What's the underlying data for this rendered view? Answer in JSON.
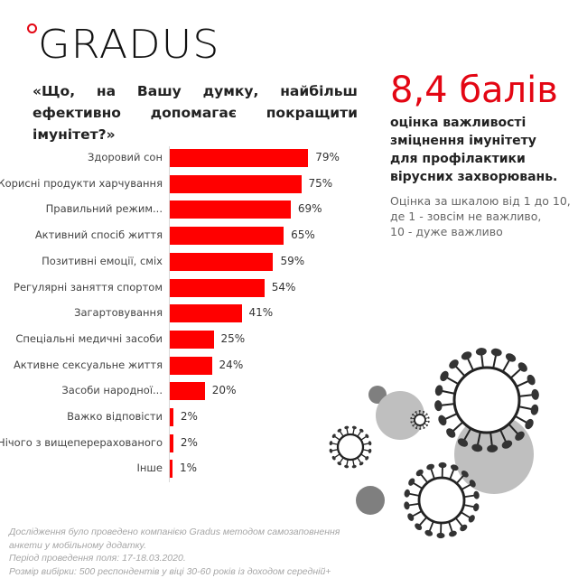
{
  "brand": {
    "logo_text": "GRADUS",
    "accent_color": "#e30613"
  },
  "question": "«Що, на Вашу думку, найбільш ефективно допомагає покращити імунітет?»",
  "score": {
    "value": "8,4 балів",
    "description": "оцінка важливості зміцнення імунітету для профілактики вірусних захворювань.",
    "scale_note_lines": [
      "Оцінка за шкалою від 1 до 10,",
      "де 1 - зовсім не важливо,",
      "10 - дуже важливо"
    ]
  },
  "footer": {
    "lines": [
      "Дослідження було проведено компанією Gradus методом самозаповнення",
      "анкети у мобільному додатку.",
      "Період проведення поля: 17-18.03.2020.",
      "Розмір вибірки: 500 респондентів у віці 30-60 років із доходом середній+"
    ]
  },
  "chart_data": {
    "type": "bar",
    "orientation": "horizontal",
    "title": "«Що, на Вашу думку, найбільш ефективно допомагає покращити імунітет?»",
    "categories": [
      "Здоровий сон",
      "Корисні продукти харчування",
      "Правильний режим...",
      "Активний спосіб життя",
      "Позитивні емоції, сміх",
      "Регулярні заняття спортом",
      "Загартовування",
      "Спеціальні медичні засоби",
      "Активне сексуальне життя",
      "Засоби народної...",
      "Важко відповісти",
      "Нічого з вищеперерахованого",
      "Інше"
    ],
    "values": [
      79,
      75,
      69,
      65,
      59,
      54,
      41,
      25,
      24,
      20,
      2,
      2,
      1
    ],
    "value_labels": [
      "79%",
      "75%",
      "69%",
      "65%",
      "59%",
      "54%",
      "41%",
      "25%",
      "24%",
      "20%",
      "2%",
      "2%",
      "1%"
    ],
    "unit": "%",
    "bar_color": "#ff0000",
    "xlabel": "",
    "ylabel": "",
    "grid": false,
    "legend": null
  }
}
